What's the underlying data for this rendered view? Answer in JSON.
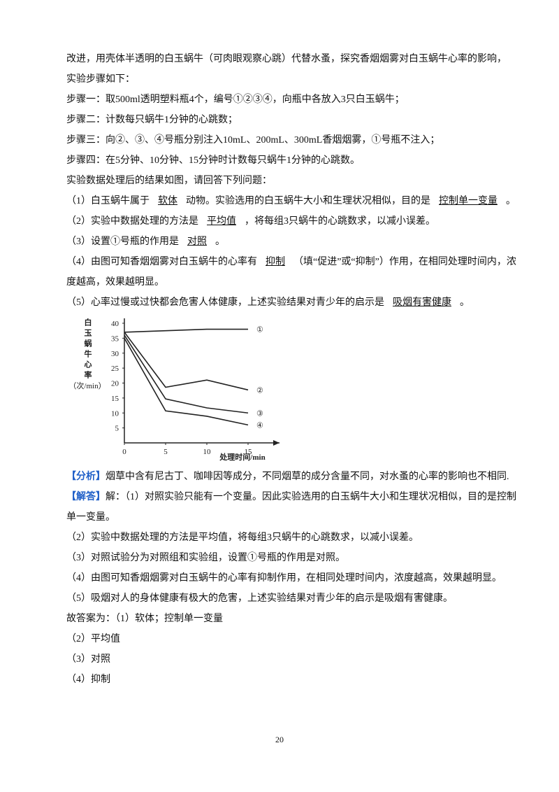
{
  "intro": [
    "改进，用壳体半透明的白玉蜗牛（可肉眼观察心跳）代替水蚤，探究香烟烟雾对白玉蜗牛心率的影响，",
    "实验步骤如下：",
    "步骤一：取500ml透明塑料瓶4个，编号①②③④，向瓶中各放入3只白玉蜗牛；",
    "步骤二：计数每只蜗牛1分钟的心跳数；",
    "步骤三：向②、③、④号瓶分别注入10mL、200mL、300mL香烟烟雾，①号瓶不注入；",
    "步骤四：在5分钟、10分钟、15分钟时计数每只蜗牛1分钟的心跳数。",
    "实验数据处理后的结果如图，请回答下列问题："
  ],
  "questions": [
    [
      "（1）白玉蜗牛属于",
      "软体",
      "动物。实验选用的白玉蜗牛大小和生理状况相似，目的是",
      "控制单一变量",
      "。"
    ],
    [
      "（2）实验中数据处理的方法是",
      "平均值",
      "，将每组3只蜗牛的心跳数求，以减小误差。"
    ],
    [
      "（3）设置①号瓶的作用是",
      "对照",
      "。"
    ],
    [
      "（4）由图可知香烟烟雾对白玉蜗牛的心率有",
      "抑制",
      "（填“促进”或“抑制”）作用，在相同处理时间内，浓度越高，效果越明显。"
    ],
    [
      "（5）心率过慢或过快都会危害人体健康，上述实验结果对青少年的启示是",
      "吸烟有害健康",
      "。"
    ]
  ],
  "chart_data": {
    "type": "line",
    "y_label": "白玉蜗牛心率",
    "y_unit": "（次/min）",
    "x_label": "处理时间/min",
    "x": [
      0,
      5,
      10,
      15
    ],
    "xlim": [
      0,
      15
    ],
    "xticks": [
      0,
      5,
      10,
      15
    ],
    "ylim": [
      0,
      40
    ],
    "yticks": [
      5,
      10,
      15,
      20,
      25,
      30,
      35,
      40
    ],
    "series": [
      {
        "name": "①",
        "color": "#222222",
        "values": [
          37,
          37.5,
          38,
          38
        ]
      },
      {
        "name": "②",
        "color": "#222222",
        "values": [
          37,
          18.6,
          21,
          17.7
        ]
      },
      {
        "name": "③",
        "color": "#222222",
        "values": [
          36,
          14.7,
          11.7,
          10
        ]
      },
      {
        "name": "④",
        "color": "#222222",
        "values": [
          35,
          10.7,
          8.9,
          6
        ]
      }
    ]
  },
  "analysis": {
    "tag": "【分析】",
    "text": "烟草中含有尼古丁、咖啡因等成分，不同烟草的成分含量不同，对水蚤的心率的影响也不相同."
  },
  "solution": {
    "tag": "【解答】",
    "text": "解：（1）对照实验只能有一个变量。因此实验选用的白玉蜗牛大小和生理状况相似，目的是控制单一变量。"
  },
  "solution_lines": [
    "（2）实验中数据处理的方法是平均值，将每组3只蜗牛的心跳数求，以减小误差。",
    "（3）对照试验分为对照组和实验组，设置①号瓶的作用是对照。",
    "（4）由图可知香烟烟雾对白玉蜗牛的心率有抑制作用，在相同处理时间内，浓度越高，效果越明显。",
    "（5）吸烟对人的身体健康有极大的危害，上述实验结果对青少年的启示是吸烟有害健康。",
    "故答案为：（1）软体；控制单一变量",
    "（2）平均值",
    "（3）对照",
    "（4）抑制"
  ],
  "page_number": 20
}
